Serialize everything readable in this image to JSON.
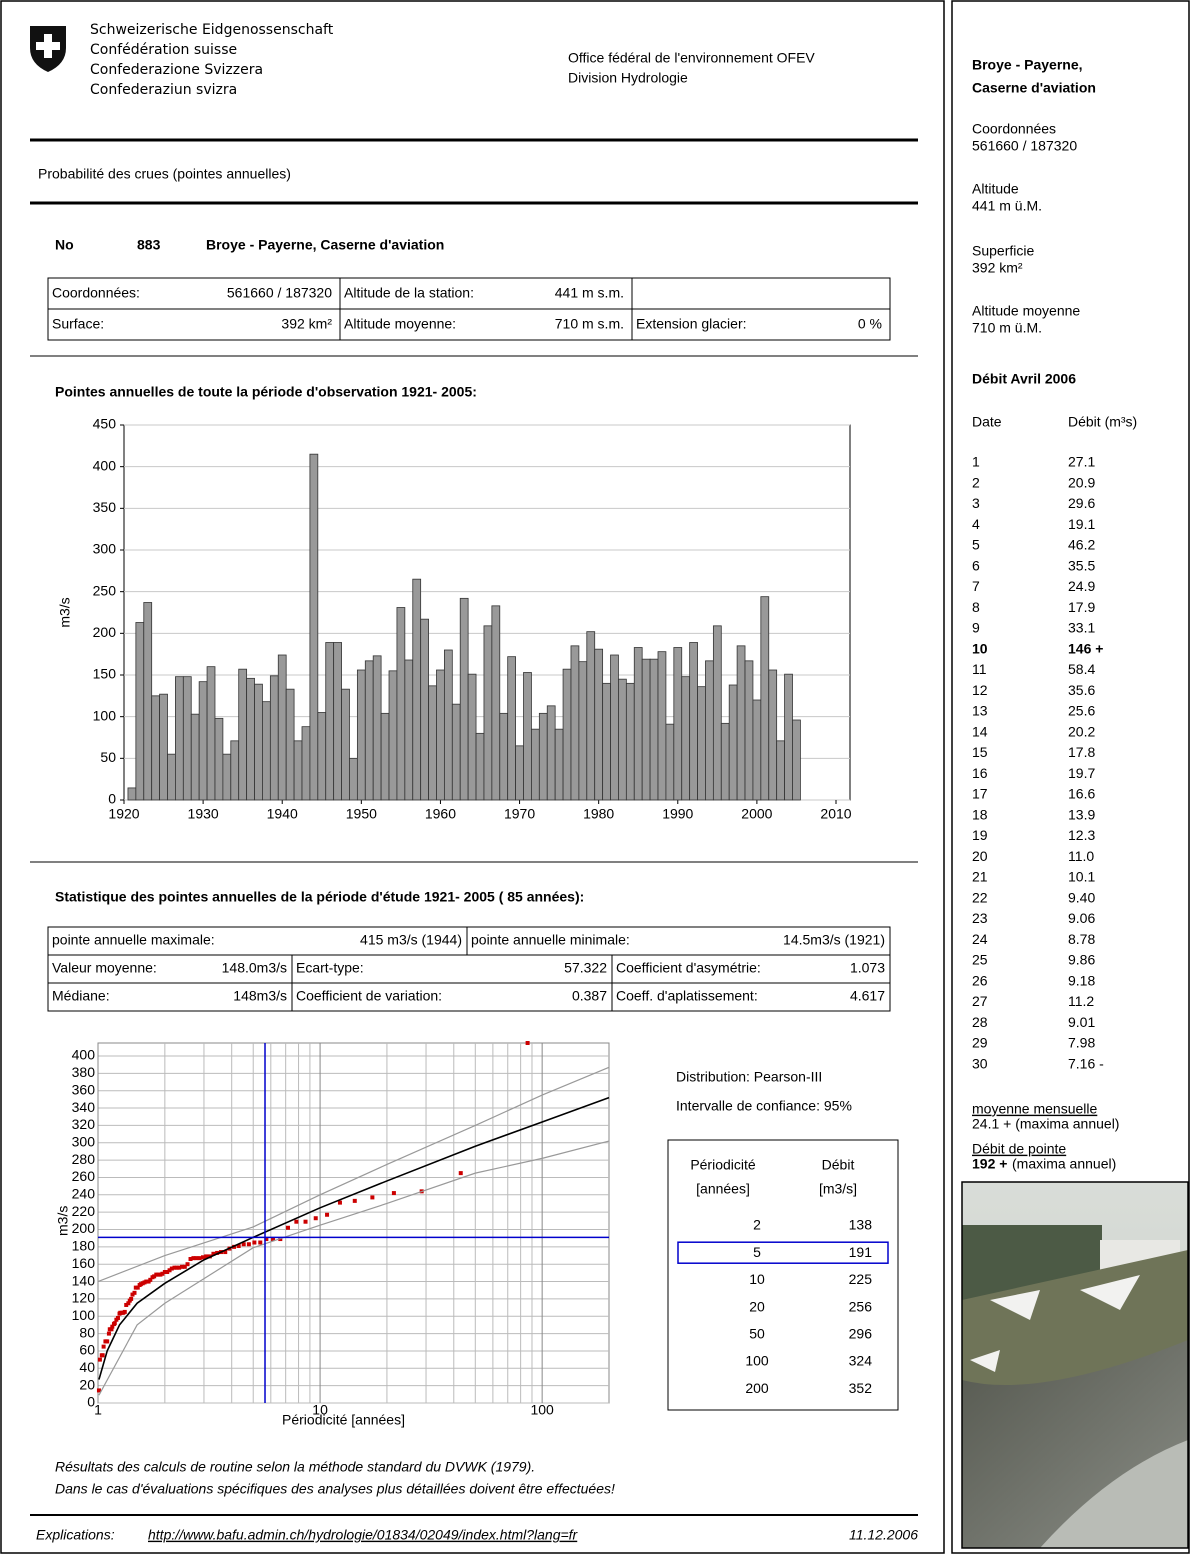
{
  "header": {
    "org_lines": [
      "Schweizerische Eidgenossenschaft",
      "Confédération suisse",
      "Confederazione Svizzera",
      "Confederaziun svizra"
    ],
    "office": "Office fédéral de l'environnement OFEV",
    "division": "Division Hydrologie"
  },
  "title": "Probabilité des crues (pointes annuelles)",
  "station": {
    "no_label": "No",
    "number": "883",
    "name": "Broye - Payerne, Caserne d'aviation",
    "rows": [
      [
        [
          "Coordonnées:",
          "561660 / 187320"
        ],
        [
          "Altitude de la station:",
          "441 m s.m."
        ]
      ],
      [
        [
          "Surface:",
          "392 km²"
        ],
        [
          "Altitude moyenne:",
          "710 m s.m."
        ],
        [
          "Extension glacier:",
          "0 %"
        ]
      ]
    ]
  },
  "chart_data": [
    {
      "type": "bar",
      "title": "Pointes annuelles de toute la période d'observation  1921- 2005:",
      "ylabel": "m3/s",
      "x": [
        1921,
        1922,
        1923,
        1924,
        1925,
        1926,
        1927,
        1928,
        1929,
        1930,
        1931,
        1932,
        1933,
        1934,
        1935,
        1936,
        1937,
        1938,
        1939,
        1940,
        1941,
        1942,
        1943,
        1944,
        1945,
        1946,
        1947,
        1948,
        1949,
        1950,
        1951,
        1952,
        1953,
        1954,
        1955,
        1956,
        1957,
        1958,
        1959,
        1960,
        1961,
        1962,
        1963,
        1964,
        1965,
        1966,
        1967,
        1968,
        1969,
        1970,
        1971,
        1972,
        1973,
        1974,
        1975,
        1976,
        1977,
        1978,
        1979,
        1980,
        1981,
        1982,
        1983,
        1984,
        1985,
        1986,
        1987,
        1988,
        1989,
        1990,
        1991,
        1992,
        1993,
        1994,
        1995,
        1996,
        1997,
        1998,
        1999,
        2000,
        2001,
        2002,
        2003,
        2004,
        2005
      ],
      "values": [
        14.5,
        213,
        237,
        125,
        127,
        55,
        148,
        148,
        103,
        142,
        160,
        98,
        55,
        71,
        157,
        146,
        139,
        118,
        149,
        174,
        133,
        71,
        88,
        415,
        105,
        189,
        189,
        133,
        50,
        156,
        167,
        173,
        104,
        155,
        231,
        168,
        265,
        217,
        137,
        156,
        180,
        115,
        242,
        151,
        80,
        209,
        233,
        104,
        172,
        65,
        153,
        85,
        104,
        113,
        85,
        157,
        185,
        166,
        202,
        181,
        140,
        174,
        145,
        140,
        183,
        169,
        169,
        178,
        91,
        183,
        148,
        189,
        136,
        167,
        209,
        92,
        138,
        185,
        167,
        120,
        244,
        156,
        71,
        151,
        96
      ],
      "color": "#999999",
      "xlim": [
        1920,
        2010
      ],
      "xticks": [
        1920,
        1930,
        1940,
        1950,
        1960,
        1970,
        1980,
        1990,
        2000,
        2010
      ],
      "ylim": [
        0,
        450
      ],
      "yticks": [
        0,
        50,
        100,
        150,
        200,
        250,
        300,
        350,
        400,
        450
      ],
      "grid": true
    },
    {
      "type": "scatter",
      "xlabel": "Périodicité [années]",
      "ylabel": "m3/s",
      "xscale": "log",
      "xlim": [
        1,
        200
      ],
      "xticks": [
        1,
        10,
        100
      ],
      "xminorticks": [
        2,
        3,
        4,
        5,
        6,
        7,
        8,
        9,
        20,
        30,
        40,
        50,
        60,
        70,
        80,
        90
      ],
      "ylim": [
        0,
        415
      ],
      "yticks": [
        0,
        20,
        40,
        60,
        80,
        100,
        120,
        140,
        160,
        180,
        200,
        220,
        240,
        260,
        280,
        300,
        320,
        340,
        360,
        380,
        400
      ],
      "grid": true,
      "series": [
        {
          "style": "markers",
          "color": "#cc0000",
          "x": [
            86,
            43,
            28.67,
            21.5,
            17.2,
            14.33,
            12.29,
            10.75,
            9.56,
            8.6,
            7.82,
            7.17,
            6.62,
            6.14,
            5.73,
            5.38,
            5.06,
            4.78,
            4.53,
            4.3,
            4.1,
            3.91,
            3.74,
            3.58,
            3.44,
            3.31,
            3.19,
            3.07,
            2.97,
            2.87,
            2.77,
            2.69,
            2.61,
            2.53,
            2.46,
            2.39,
            2.32,
            2.26,
            2.21,
            2.15,
            2.1,
            2.05,
            2.0,
            1.95,
            1.91,
            1.87,
            1.83,
            1.79,
            1.76,
            1.72,
            1.69,
            1.65,
            1.62,
            1.59,
            1.56,
            1.54,
            1.51,
            1.48,
            1.46,
            1.43,
            1.41,
            1.39,
            1.37,
            1.34,
            1.32,
            1.3,
            1.28,
            1.26,
            1.25,
            1.23,
            1.21,
            1.19,
            1.18,
            1.16,
            1.15,
            1.13,
            1.12,
            1.1,
            1.09,
            1.08,
            1.06,
            1.05,
            1.04,
            1.02,
            1.01
          ],
          "values": [
            415,
            265,
            244,
            242,
            237,
            233,
            231,
            217,
            213,
            209,
            209,
            202,
            189,
            189,
            189,
            185,
            185,
            183,
            183,
            181,
            180,
            178,
            174,
            174,
            173,
            172,
            169,
            169,
            168,
            167,
            167,
            167,
            166,
            160,
            157,
            157,
            156,
            156,
            156,
            155,
            153,
            151,
            151,
            149,
            148,
            148,
            148,
            146,
            145,
            142,
            140,
            140,
            139,
            138,
            137,
            136,
            133,
            133,
            127,
            125,
            120,
            118,
            115,
            113,
            105,
            104,
            104,
            104,
            103,
            98,
            96,
            92,
            91,
            88,
            85,
            85,
            80,
            71,
            71,
            71,
            65,
            55,
            55,
            50,
            14.5
          ]
        },
        {
          "style": "line",
          "color": "#000000",
          "x": [
            1.01,
            1.1,
            1.25,
            1.5,
            2,
            3,
            5,
            10,
            20,
            50,
            100,
            200
          ],
          "values": [
            27,
            60,
            90,
            115,
            138,
            165,
            191,
            225,
            256,
            296,
            324,
            352
          ]
        },
        {
          "style": "line",
          "color": "#999999",
          "x": [
            1,
            2,
            5,
            10,
            20,
            50,
            100,
            200
          ],
          "values": [
            140,
            170,
            203,
            240,
            275,
            320,
            355,
            387
          ]
        },
        {
          "style": "line",
          "color": "#999999",
          "x": [
            1.01,
            1.5,
            2,
            5,
            10,
            20,
            50,
            100,
            200
          ],
          "values": [
            9,
            90,
            115,
            179,
            205,
            230,
            265,
            282,
            302
          ]
        }
      ],
      "reference": {
        "x": 5.65,
        "y": 191,
        "color": "#0000cc"
      }
    }
  ],
  "statistics": {
    "heading": "Statistique des pointes annuelles de la période d'étude  1921- 2005  ( 85 années):",
    "rows": [
      [
        [
          "pointe annuelle maximale:",
          "415 m3/s  (1944)"
        ],
        [
          "pointe annuelle minimale:",
          "14.5m3/s    (1921)"
        ]
      ],
      [
        [
          "Valeur moyenne:",
          "148.0m3/s"
        ],
        [
          "Ecart-type:",
          "57.322"
        ],
        [
          "Coefficient d'asymétrie:",
          "1.073"
        ]
      ],
      [
        [
          "Médiane:",
          "148m3/s"
        ],
        [
          "Coefficient de variation:",
          "0.387"
        ],
        [
          "Coeff. d'aplatissement:",
          "4.617"
        ]
      ]
    ]
  },
  "distribution": "Distribution:  Pearson-III",
  "confidence": "Intervalle de confiance: 95%",
  "return_periods": {
    "headers": [
      [
        "Périodicité",
        "[années]"
      ],
      [
        "Débit",
        "[m3/s]"
      ]
    ],
    "rows": [
      [
        "2",
        "138"
      ],
      [
        "5",
        "191"
      ],
      [
        "10",
        "225"
      ],
      [
        "20",
        "256"
      ],
      [
        "50",
        "296"
      ],
      [
        "100",
        "324"
      ],
      [
        "200",
        "352"
      ]
    ],
    "highlight_row": 1,
    "highlight_color": "#0000cc"
  },
  "notes": [
    "Résultats des calculs de routine selon la méthode standard du DVWK (1979).",
    "Dans le cas d'évaluations spécifiques des analyses plus détaillées doivent être effectuées!"
  ],
  "footer": {
    "label": "Explications:",
    "link": "http://www.bafu.admin.ch/hydrologie/01834/02049/index.html?lang=fr",
    "date": "11.12.2006"
  },
  "sidebar": {
    "title_lines": [
      "Broye - Payerne,",
      "Caserne d'aviation"
    ],
    "fields": [
      [
        "Coordonnées",
        "561660 / 187320"
      ],
      [
        "Altitude",
        "441 m ü.M."
      ],
      [
        "Superficie",
        "392 km²"
      ],
      [
        "Altitude moyenne",
        "710 m ü.M."
      ]
    ],
    "flow_heading": "Débit Avril 2006",
    "columns": [
      "Date",
      "Débit (m³s)"
    ],
    "rows": [
      [
        "1",
        "27.1"
      ],
      [
        "2",
        "20.9"
      ],
      [
        "3",
        "29.6"
      ],
      [
        "4",
        "19.1"
      ],
      [
        "5",
        "46.2"
      ],
      [
        "6",
        "35.5"
      ],
      [
        "7",
        "24.9"
      ],
      [
        "8",
        "17.9"
      ],
      [
        "9",
        "33.1"
      ],
      [
        "10",
        "146 +"
      ],
      [
        "11",
        "58.4"
      ],
      [
        "12",
        "35.6"
      ],
      [
        "13",
        "25.6"
      ],
      [
        "14",
        "20.2"
      ],
      [
        "15",
        "17.8"
      ],
      [
        "16",
        "19.7"
      ],
      [
        "17",
        "16.6"
      ],
      [
        "18",
        "13.9"
      ],
      [
        "19",
        "12.3"
      ],
      [
        "20",
        "11.0"
      ],
      [
        "21",
        "10.1"
      ],
      [
        "22",
        "9.40"
      ],
      [
        "23",
        "9.06"
      ],
      [
        "24",
        "8.78"
      ],
      [
        "25",
        "9.86"
      ],
      [
        "26",
        "9.18"
      ],
      [
        "27",
        "11.2"
      ],
      [
        "28",
        "9.01"
      ],
      [
        "29",
        "7.98"
      ],
      [
        "30",
        "7.16 -"
      ]
    ],
    "highlight_row": 9,
    "highlight_color": "#0000cc",
    "monthly_mean_label": "moyenne mensuelle",
    "monthly_mean": "24.1 +  (maxima annuel)",
    "peak_label": "Débit de pointe",
    "peak_value": "192 +",
    "peak_note": "(maxima annuel)"
  }
}
